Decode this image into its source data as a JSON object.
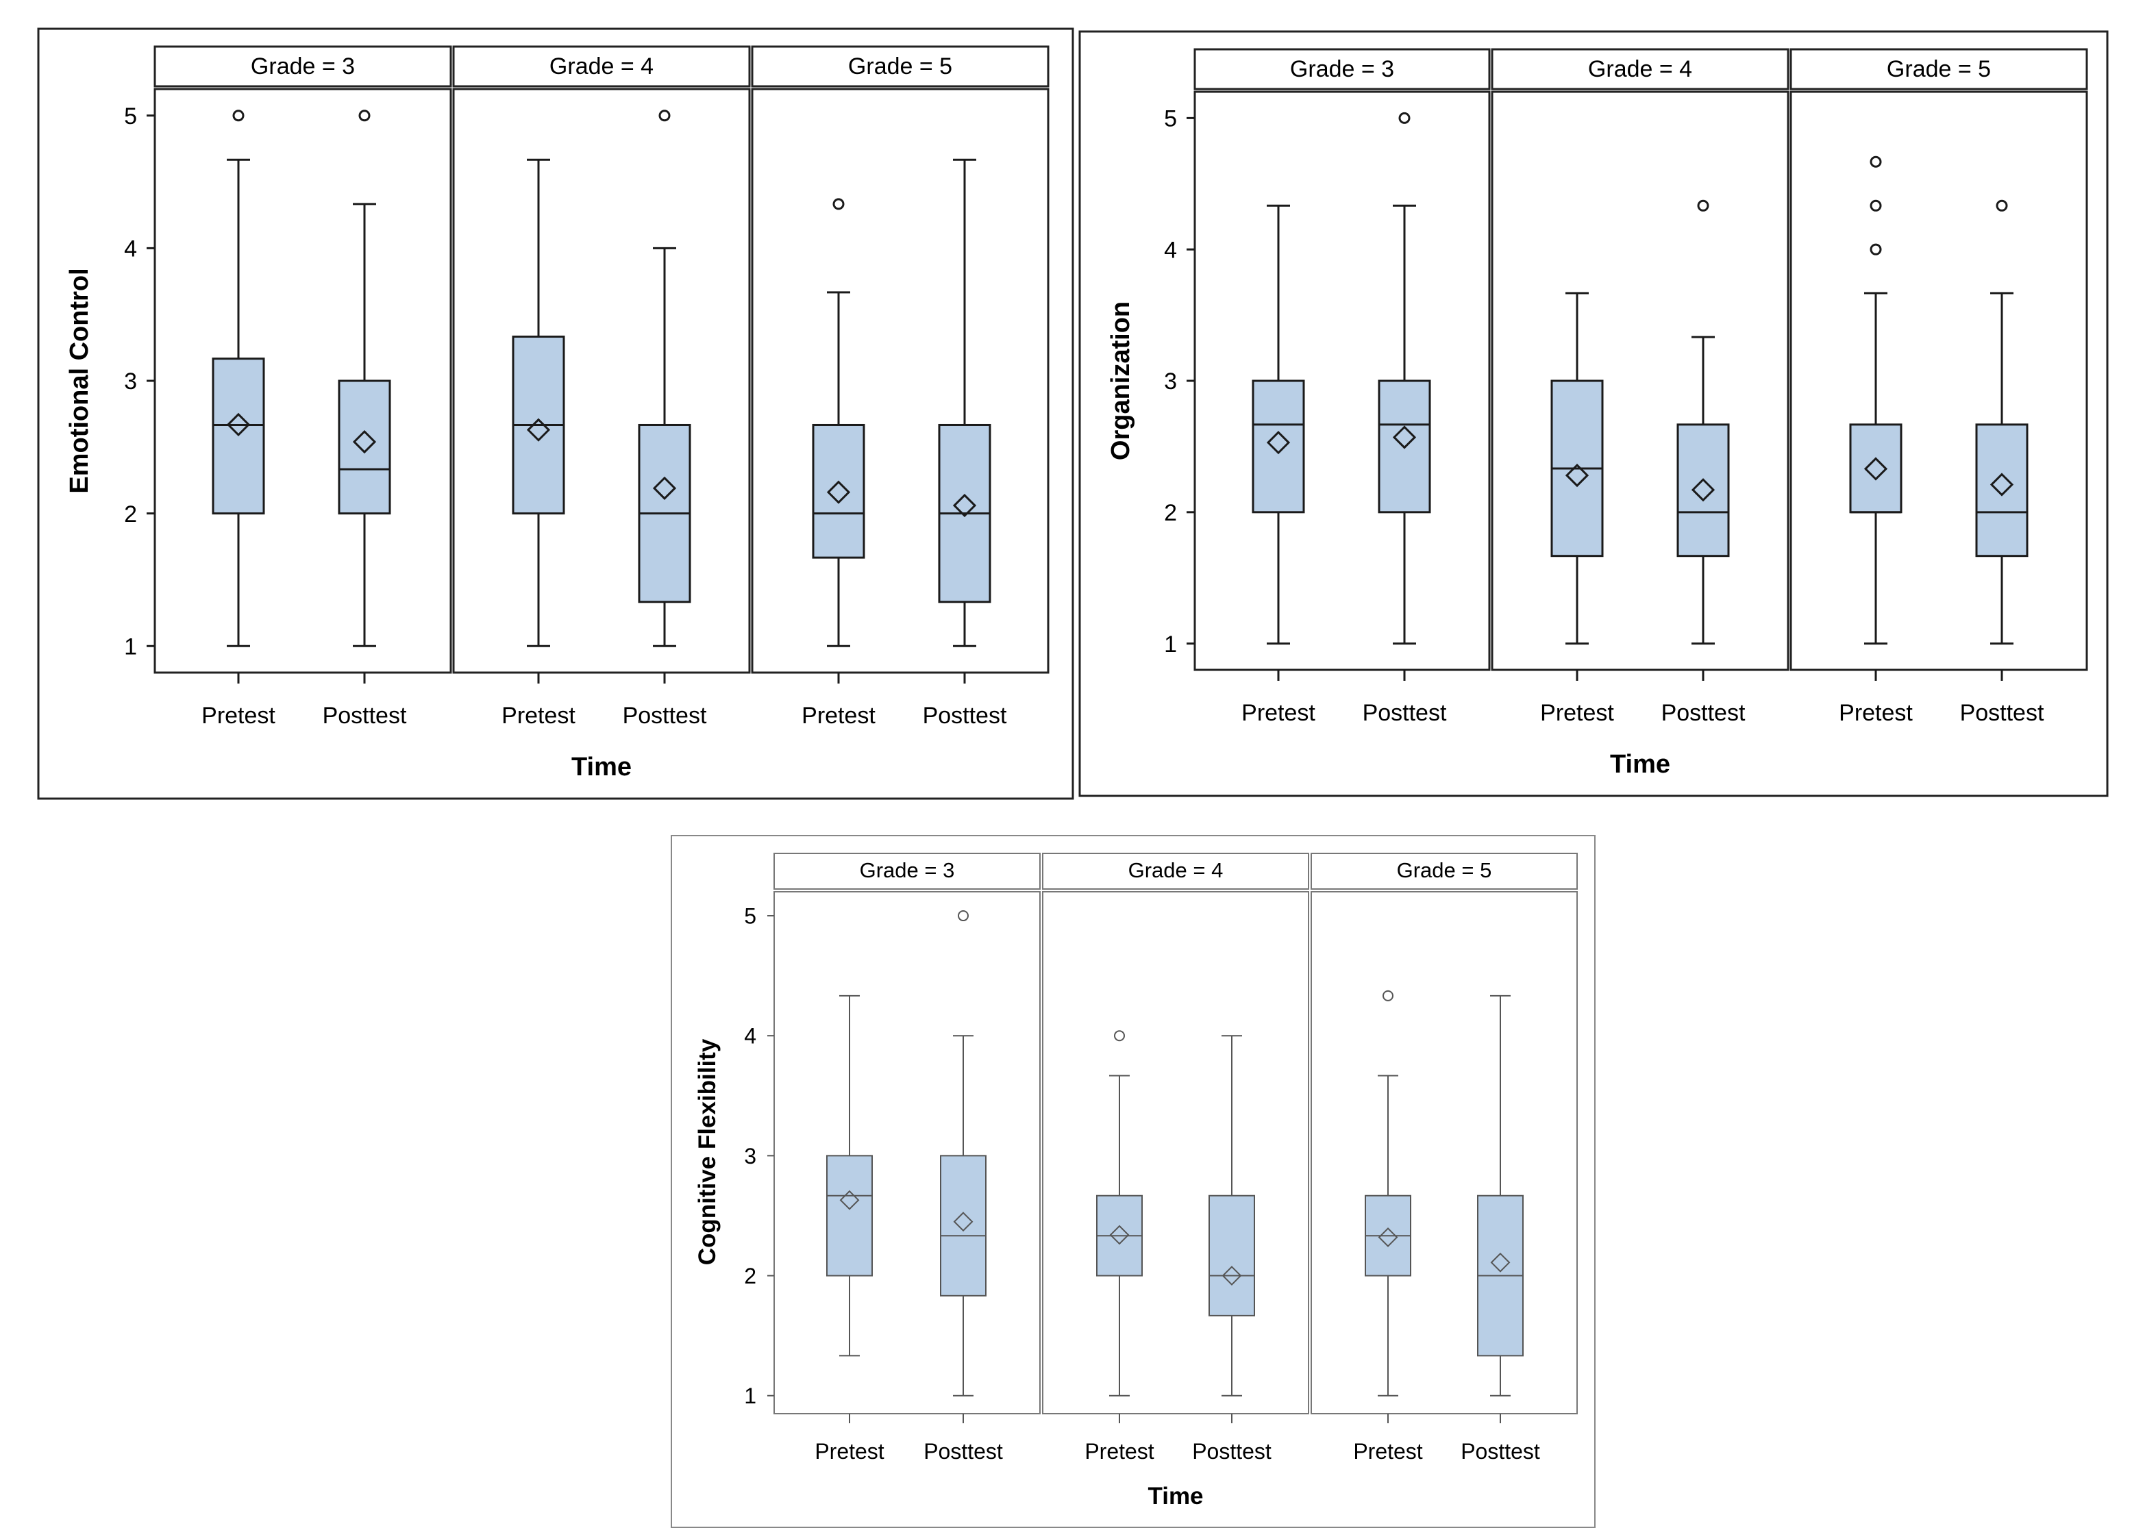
{
  "chart_data": [
    {
      "type": "boxplot",
      "ylabel": "Emotional Control",
      "xlabel": "Time",
      "facet_labels": [
        "Grade = 3",
        "Grade = 4",
        "Grade = 5"
      ],
      "categories": [
        "Pretest",
        "Posttest"
      ],
      "y_ticks": [
        "1",
        "2",
        "3",
        "4",
        "5"
      ],
      "ylim": [
        0.8,
        5.2
      ],
      "panels": [
        {
          "facet": "Grade = 3",
          "boxes": [
            {
              "x": "Pretest",
              "whisker_low": 1.0,
              "q1": 2.0,
              "median": 2.667,
              "q3": 3.167,
              "whisker_high": 4.667,
              "mean": 2.67,
              "outliers": [
                5.0
              ]
            },
            {
              "x": "Posttest",
              "whisker_low": 1.0,
              "q1": 2.0,
              "median": 2.333,
              "q3": 3.0,
              "whisker_high": 4.333,
              "mean": 2.54,
              "outliers": [
                5.0
              ]
            }
          ]
        },
        {
          "facet": "Grade = 4",
          "boxes": [
            {
              "x": "Pretest",
              "whisker_low": 1.0,
              "q1": 2.0,
              "median": 2.667,
              "q3": 3.333,
              "whisker_high": 4.667,
              "mean": 2.63,
              "outliers": []
            },
            {
              "x": "Posttest",
              "whisker_low": 1.0,
              "q1": 1.333,
              "median": 2.0,
              "q3": 2.667,
              "whisker_high": 4.0,
              "mean": 2.19,
              "outliers": [
                5.0
              ]
            }
          ]
        },
        {
          "facet": "Grade = 5",
          "boxes": [
            {
              "x": "Pretest",
              "whisker_low": 1.0,
              "q1": 1.667,
              "median": 2.0,
              "q3": 2.667,
              "whisker_high": 3.667,
              "mean": 2.16,
              "outliers": [
                4.333
              ]
            },
            {
              "x": "Posttest",
              "whisker_low": 1.0,
              "q1": 1.333,
              "median": 2.0,
              "q3": 2.667,
              "whisker_high": 4.667,
              "mean": 2.06,
              "outliers": []
            }
          ]
        }
      ]
    },
    {
      "type": "boxplot",
      "ylabel": "Organization",
      "xlabel": "Time",
      "facet_labels": [
        "Grade = 3",
        "Grade = 4",
        "Grade = 5"
      ],
      "categories": [
        "Pretest",
        "Posttest"
      ],
      "y_ticks": [
        "1",
        "2",
        "3",
        "4",
        "5"
      ],
      "ylim": [
        0.8,
        5.2
      ],
      "panels": [
        {
          "facet": "Grade = 3",
          "boxes": [
            {
              "x": "Pretest",
              "whisker_low": 1.0,
              "q1": 2.0,
              "median": 2.667,
              "q3": 3.0,
              "whisker_high": 4.333,
              "mean": 2.53,
              "outliers": []
            },
            {
              "x": "Posttest",
              "whisker_low": 1.0,
              "q1": 2.0,
              "median": 2.667,
              "q3": 3.0,
              "whisker_high": 4.333,
              "mean": 2.57,
              "outliers": [
                5.0
              ]
            }
          ]
        },
        {
          "facet": "Grade = 4",
          "boxes": [
            {
              "x": "Pretest",
              "whisker_low": 1.0,
              "q1": 1.667,
              "median": 2.333,
              "q3": 3.0,
              "whisker_high": 3.667,
              "mean": 2.28,
              "outliers": []
            },
            {
              "x": "Posttest",
              "whisker_low": 1.0,
              "q1": 1.667,
              "median": 2.0,
              "q3": 2.667,
              "whisker_high": 3.333,
              "mean": 2.17,
              "outliers": [
                4.333
              ]
            }
          ]
        },
        {
          "facet": "Grade = 5",
          "boxes": [
            {
              "x": "Pretest",
              "whisker_low": 1.0,
              "q1": 2.0,
              "median": 2.0,
              "q3": 2.667,
              "whisker_high": 3.667,
              "mean": 2.33,
              "outliers": [
                4.0,
                4.333,
                4.667
              ]
            },
            {
              "x": "Posttest",
              "whisker_low": 1.0,
              "q1": 1.667,
              "median": 2.0,
              "q3": 2.667,
              "whisker_high": 3.667,
              "mean": 2.21,
              "outliers": [
                4.333
              ]
            }
          ]
        }
      ]
    },
    {
      "type": "boxplot",
      "ylabel": "Cognitive Flexibility",
      "xlabel": "Time",
      "facet_labels": [
        "Grade = 3",
        "Grade = 4",
        "Grade = 5"
      ],
      "categories": [
        "Pretest",
        "Posttest"
      ],
      "y_ticks": [
        "1",
        "2",
        "3",
        "4",
        "5"
      ],
      "ylim": [
        0.85,
        5.2
      ],
      "panels": [
        {
          "facet": "Grade = 3",
          "boxes": [
            {
              "x": "Pretest",
              "whisker_low": 1.333,
              "q1": 2.0,
              "median": 2.667,
              "q3": 3.0,
              "whisker_high": 4.333,
              "mean": 2.63,
              "outliers": []
            },
            {
              "x": "Posttest",
              "whisker_low": 1.0,
              "q1": 1.833,
              "median": 2.333,
              "q3": 3.0,
              "whisker_high": 4.0,
              "mean": 2.45,
              "outliers": [
                5.0
              ]
            }
          ]
        },
        {
          "facet": "Grade = 4",
          "boxes": [
            {
              "x": "Pretest",
              "whisker_low": 1.0,
              "q1": 2.0,
              "median": 2.333,
              "q3": 2.667,
              "whisker_high": 3.667,
              "mean": 2.34,
              "outliers": [
                4.0
              ]
            },
            {
              "x": "Posttest",
              "whisker_low": 1.0,
              "q1": 1.667,
              "median": 2.0,
              "q3": 2.667,
              "whisker_high": 4.0,
              "mean": 2.0,
              "outliers": []
            }
          ]
        },
        {
          "facet": "Grade = 5",
          "boxes": [
            {
              "x": "Pretest",
              "whisker_low": 1.0,
              "q1": 2.0,
              "median": 2.333,
              "q3": 2.667,
              "whisker_high": 3.667,
              "mean": 2.32,
              "outliers": [
                4.333
              ]
            },
            {
              "x": "Posttest",
              "whisker_low": 1.0,
              "q1": 1.333,
              "median": 2.0,
              "q3": 2.667,
              "whisker_high": 4.333,
              "mean": 2.11,
              "outliers": []
            }
          ]
        }
      ]
    }
  ],
  "colors": {
    "box_fill": "#b9cfe6",
    "outline": "#1a1a1a",
    "outline_light": "#555555",
    "frame_light": "#888888"
  }
}
